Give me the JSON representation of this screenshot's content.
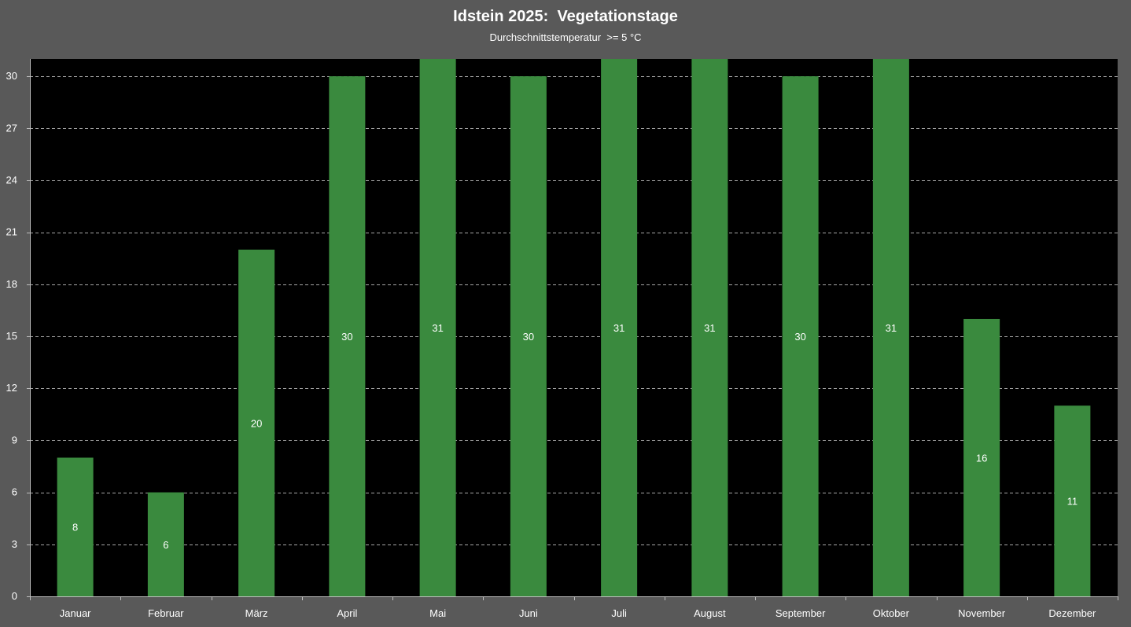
{
  "chart_data": {
    "type": "bar",
    "title": "Idstein 2025:  Vegetationstage",
    "subtitle": "Durchschnittstemperatur  >= 5 °C",
    "xlabel": "",
    "ylabel": "",
    "categories": [
      "Januar",
      "Februar",
      "März",
      "April",
      "Mai",
      "Juni",
      "Juli",
      "August",
      "September",
      "Oktober",
      "November",
      "Dezember"
    ],
    "values": [
      8,
      6,
      20,
      30,
      31,
      30,
      31,
      31,
      30,
      31,
      16,
      11
    ],
    "ylim": [
      0,
      31
    ],
    "yticks": [
      0,
      3,
      6,
      9,
      12,
      15,
      18,
      21,
      24,
      27,
      30
    ],
    "grid": true,
    "legend": "none",
    "data_labels": true,
    "colors": {
      "bar": "#3a8a3e",
      "plot_background": "#000000",
      "page_background": "#595959",
      "text": "#ffffff",
      "grid": "#a6a6a6"
    }
  }
}
